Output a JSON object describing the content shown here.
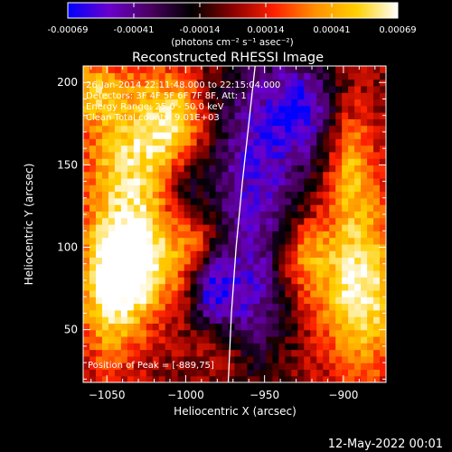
{
  "chart_data": {
    "type": "heatmap",
    "title": "Reconstructed RHESSI Image",
    "xlabel": "Heliocentric X (arcsec)",
    "ylabel": "Heliocentric Y (arcsec)",
    "xlim": [
      -1065,
      -873
    ],
    "ylim": [
      18,
      210
    ],
    "x_ticks": [
      -1050,
      -1000,
      -950,
      -900
    ],
    "y_ticks": [
      50,
      100,
      150,
      200
    ],
    "colorbar": {
      "min": -0.00069,
      "max": 0.00069,
      "ticks": [
        "-0.00069",
        "-0.00041",
        "-0.00014",
        "0.00014",
        "0.00041",
        "0.00069"
      ],
      "unit_label": "(photons cm⁻² s⁻¹ asec⁻²)",
      "colormap": [
        "#0000ff",
        "#6a00cc",
        "#4a0060",
        "#000000",
        "#8a0000",
        "#ff2000",
        "#ff9000",
        "#ffd000",
        "#ffffff"
      ]
    },
    "annotations": [
      "26-Jan-2014 22:11:48.000 to 22:15:04.000",
      "Detectors: 3F 4F 5F 6F 7F 8F, Att: 1",
      "Energy Range: 25.0 - 50.0 keV",
      "Clean     Total counts: 9.01E+03"
    ],
    "peak_label": "Position of Peak = [-889,75]",
    "limb_curve": [
      [
        -973,
        18
      ],
      [
        -971,
        60
      ],
      [
        -968,
        100
      ],
      [
        -964,
        140
      ],
      [
        -960,
        175
      ],
      [
        -956,
        210
      ]
    ],
    "regions": [
      {
        "x": -1035,
        "y": 155,
        "sx": 22,
        "sy": 40,
        "amp": 0.00055
      },
      {
        "x": -1030,
        "y": 90,
        "sx": 18,
        "sy": 22,
        "amp": 0.00062
      },
      {
        "x": -1048,
        "y": 70,
        "sx": 14,
        "sy": 30,
        "amp": 0.0005
      },
      {
        "x": -1005,
        "y": 175,
        "sx": 14,
        "sy": 20,
        "amp": 0.00045
      },
      {
        "x": -995,
        "y": 105,
        "sx": 10,
        "sy": 16,
        "amp": 0.00035
      },
      {
        "x": -889,
        "y": 75,
        "sx": 18,
        "sy": 35,
        "amp": 0.00069
      },
      {
        "x": -895,
        "y": 150,
        "sx": 10,
        "sy": 25,
        "amp": 0.0004
      },
      {
        "x": -925,
        "y": 95,
        "sx": 12,
        "sy": 18,
        "amp": 0.0004
      },
      {
        "x": -975,
        "y": 40,
        "sx": 14,
        "sy": 14,
        "amp": 0.0003
      },
      {
        "x": -1060,
        "y": 195,
        "sx": 10,
        "sy": 12,
        "amp": 0.00035
      },
      {
        "x": -955,
        "y": 150,
        "sx": 22,
        "sy": 50,
        "amp": -0.00055
      },
      {
        "x": -965,
        "y": 60,
        "sx": 18,
        "sy": 28,
        "amp": -0.00045
      },
      {
        "x": -1000,
        "y": 135,
        "sx": 10,
        "sy": 20,
        "amp": -0.00035
      },
      {
        "x": -925,
        "y": 185,
        "sx": 14,
        "sy": 20,
        "amp": -0.0005
      },
      {
        "x": -985,
        "y": 75,
        "sx": 8,
        "sy": 14,
        "amp": -0.0004
      }
    ]
  },
  "footer": {
    "date": "12-May-2022 00:01"
  }
}
